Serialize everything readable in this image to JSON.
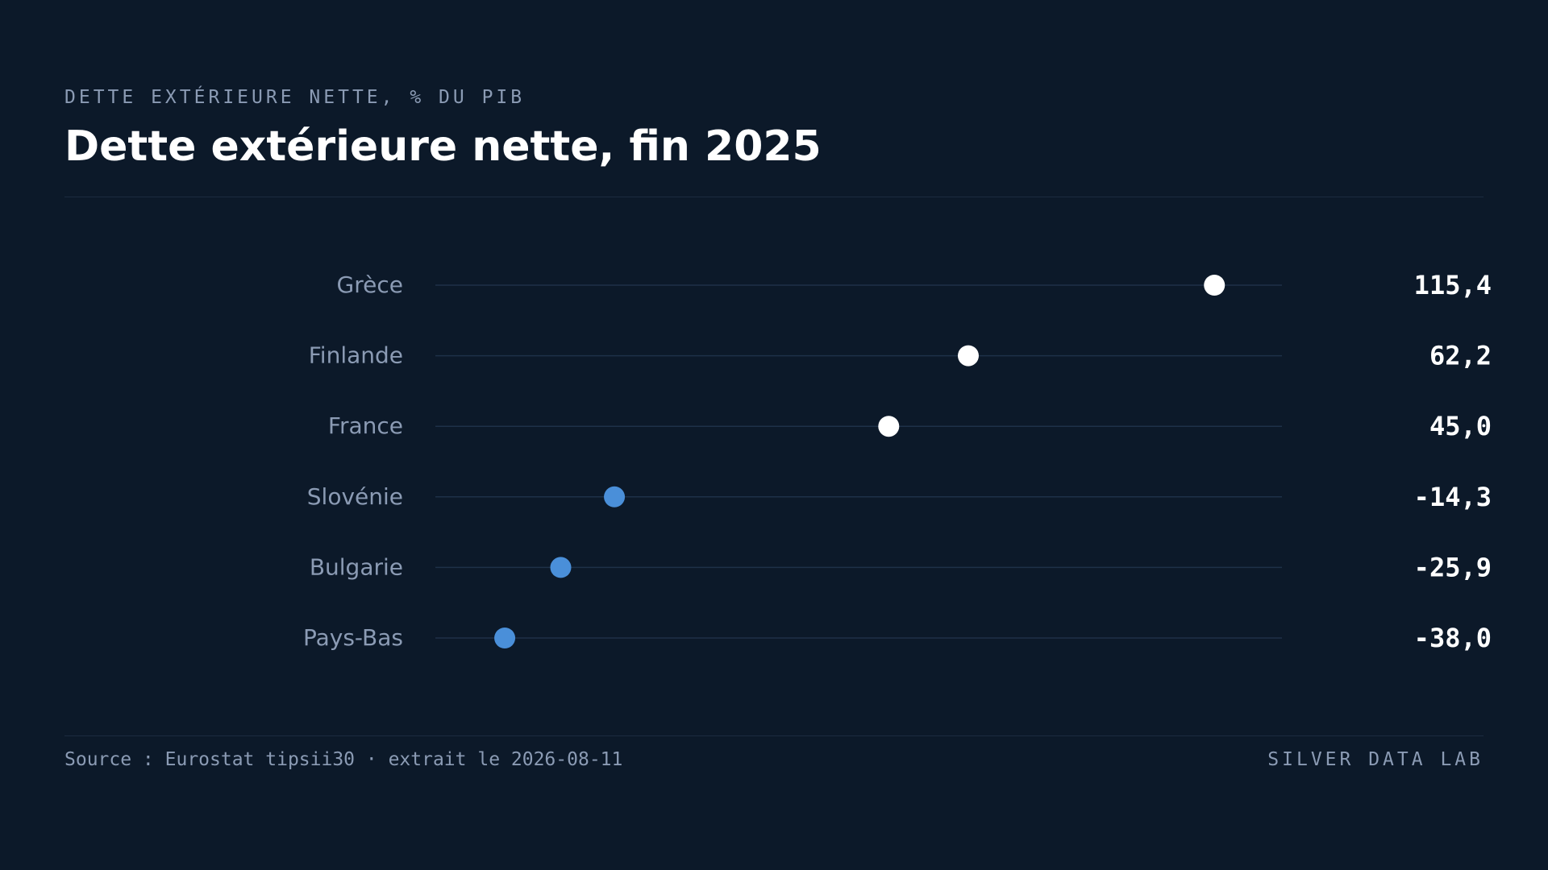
{
  "header": {
    "kicker": "DETTE EXTÉRIEURE NETTE, % DU PIB",
    "title": "Dette extérieure nette, fin 2025"
  },
  "footer": {
    "source": "Source : Eurostat tipsii30 · extrait le 2026-08-11",
    "brand": "SILVER DATA LAB"
  },
  "colors": {
    "background": "#0c1929",
    "positive_dot": "#ffffff",
    "negative_dot": "#4a8fd9",
    "track": "#1e3148",
    "label": "#8b9bb4",
    "value": "#ffffff"
  },
  "chart_data": {
    "type": "scatter",
    "categories": [
      "Grèce",
      "Finlande",
      "France",
      "Slovénie",
      "Bulgarie",
      "Pays-Bas"
    ],
    "values": [
      115.4,
      62.2,
      45.0,
      -14.3,
      -25.9,
      -38.0
    ],
    "value_labels": [
      "115,4",
      "62,2",
      "45,0",
      "-14,3",
      "-25,9",
      "-38,0"
    ],
    "xlim": [
      -53,
      130
    ],
    "grid": false,
    "legend": "none"
  }
}
